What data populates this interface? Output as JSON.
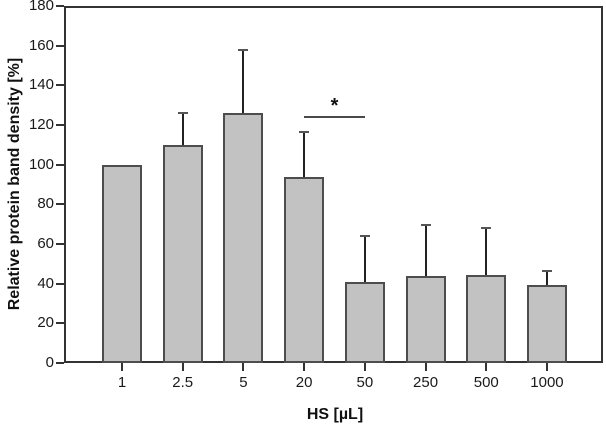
{
  "chart_data": {
    "type": "bar",
    "title": "",
    "xlabel": "HS [µL]",
    "ylabel": "Relative protein band density [%]",
    "categories": [
      "1",
      "2.5",
      "5",
      "20",
      "50",
      "250",
      "500",
      "1000"
    ],
    "series": [
      {
        "name": "Relative protein band density",
        "values": [
          100,
          110,
          126,
          94,
          41,
          44,
          44.5,
          39.5
        ],
        "error_plus": [
          0,
          16,
          32,
          22.5,
          23,
          25.5,
          23.5,
          7
        ]
      }
    ],
    "ylim": [
      0,
      180
    ],
    "ytick_step": 20,
    "yticks": [
      0,
      20,
      40,
      60,
      80,
      100,
      120,
      140,
      160,
      180
    ],
    "grid": false,
    "legend": "none",
    "bar_fill": "#c2c2c2",
    "bar_border": "#4d4d4d",
    "axis_color": "#333333",
    "annotation": {
      "type": "significance-bracket",
      "label": "*",
      "between": [
        "20",
        "50"
      ],
      "y_value": 124
    }
  }
}
